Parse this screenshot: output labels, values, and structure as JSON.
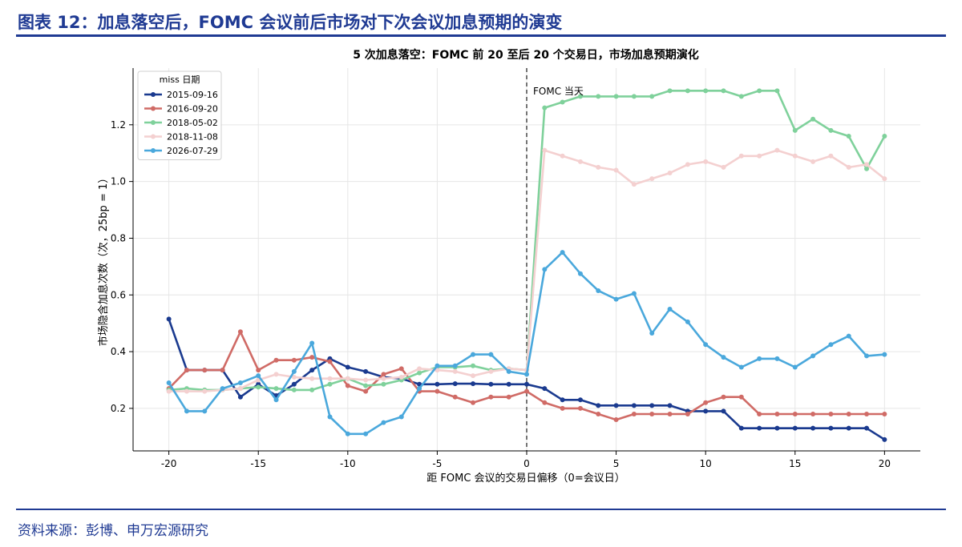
{
  "header": {
    "title": "图表 12：加息落空后，FOMC 会议前后市场对下次会议加息预期的演变"
  },
  "footer": {
    "source": "资料来源：彭博、申万宏源研究"
  },
  "colors": {
    "brand": "#1f3a93",
    "axis": "#000000",
    "grid": "#e6e6e6",
    "vline": "#555555"
  },
  "chart_data": {
    "type": "line",
    "title": "5 次加息落空：FOMC 前 20 至后 20 个交易日，市场加息预期演化",
    "xlabel": "距 FOMC 会议的交易日偏移（0=会议日）",
    "ylabel": "市场隐含加息次数（次，25bp = 1）",
    "xlim": [
      -22,
      22
    ],
    "ylim": [
      0.05,
      1.4
    ],
    "x_ticks": [
      -20,
      -15,
      -10,
      -5,
      0,
      5,
      10,
      15,
      20
    ],
    "y_ticks": [
      0.2,
      0.4,
      0.6,
      0.8,
      1.0,
      1.2
    ],
    "grid": true,
    "legend": {
      "title": "miss 日期",
      "placement": "top-left"
    },
    "annotation": {
      "x": 0,
      "text": "FOMC 当天"
    },
    "x": [
      -20,
      -19,
      -18,
      -17,
      -16,
      -15,
      -14,
      -13,
      -12,
      -11,
      -10,
      -9,
      -8,
      -7,
      -6,
      -5,
      -4,
      -3,
      -2,
      -1,
      0,
      1,
      2,
      3,
      4,
      5,
      6,
      7,
      8,
      9,
      10,
      11,
      12,
      13,
      14,
      15,
      16,
      17,
      18,
      19,
      20
    ],
    "series": [
      {
        "name": "2015-09-16",
        "color": "#1a3a8f",
        "values": [
          0.515,
          0.335,
          0.335,
          0.335,
          0.24,
          0.285,
          0.245,
          0.285,
          0.335,
          0.375,
          0.345,
          0.33,
          0.31,
          0.305,
          0.285,
          0.285,
          0.287,
          0.287,
          0.285,
          0.285,
          0.285,
          0.27,
          0.23,
          0.23,
          0.21,
          0.21,
          0.21,
          0.21,
          0.21,
          0.19,
          0.19,
          0.19,
          0.13,
          0.13,
          0.13,
          0.13,
          0.13,
          0.13,
          0.13,
          0.13,
          0.09
        ]
      },
      {
        "name": "2016-09-20",
        "color": "#d06b66",
        "values": [
          0.27,
          0.335,
          0.335,
          0.335,
          0.47,
          0.335,
          0.37,
          0.37,
          0.38,
          0.365,
          0.28,
          0.26,
          0.32,
          0.34,
          0.26,
          0.26,
          0.24,
          0.22,
          0.24,
          0.24,
          0.26,
          0.22,
          0.2,
          0.2,
          0.18,
          0.16,
          0.18,
          0.18,
          0.18,
          0.18,
          0.22,
          0.24,
          0.24,
          0.18,
          0.18,
          0.18,
          0.18,
          0.18,
          0.18,
          0.18,
          0.18
        ]
      },
      {
        "name": "2018-05-02",
        "color": "#7fd19b",
        "values": [
          0.265,
          0.27,
          0.265,
          0.265,
          0.27,
          0.275,
          0.27,
          0.265,
          0.265,
          0.285,
          0.305,
          0.28,
          0.285,
          0.3,
          0.325,
          0.345,
          0.345,
          0.35,
          0.335,
          0.34,
          0.335,
          1.26,
          1.28,
          1.3,
          1.3,
          1.3,
          1.3,
          1.3,
          1.32,
          1.32,
          1.32,
          1.32,
          1.3,
          1.32,
          1.32,
          1.18,
          1.22,
          1.18,
          1.16,
          1.045,
          1.16
        ]
      },
      {
        "name": "2018-11-08",
        "color": "#f4d0d0",
        "values": [
          0.26,
          0.26,
          0.26,
          0.265,
          0.27,
          0.3,
          0.32,
          0.31,
          0.305,
          0.305,
          0.305,
          0.3,
          0.305,
          0.31,
          0.34,
          0.335,
          0.33,
          0.315,
          0.33,
          0.34,
          0.335,
          1.11,
          1.09,
          1.07,
          1.05,
          1.04,
          0.99,
          1.01,
          1.03,
          1.06,
          1.07,
          1.05,
          1.09,
          1.09,
          1.11,
          1.09,
          1.07,
          1.09,
          1.05,
          1.06,
          1.01
        ]
      },
      {
        "name": "2026-07-29",
        "color": "#4aa8dc",
        "values": [
          0.29,
          0.19,
          0.19,
          0.27,
          0.29,
          0.315,
          0.23,
          0.33,
          0.43,
          0.17,
          0.11,
          0.11,
          0.15,
          0.17,
          0.27,
          0.35,
          0.35,
          0.39,
          0.39,
          0.33,
          0.32,
          0.69,
          0.75,
          0.675,
          0.615,
          0.585,
          0.605,
          0.465,
          0.55,
          0.505,
          0.425,
          0.38,
          0.345,
          0.375,
          0.375,
          0.345,
          0.385,
          0.425,
          0.455,
          0.385,
          0.39
        ]
      }
    ]
  }
}
